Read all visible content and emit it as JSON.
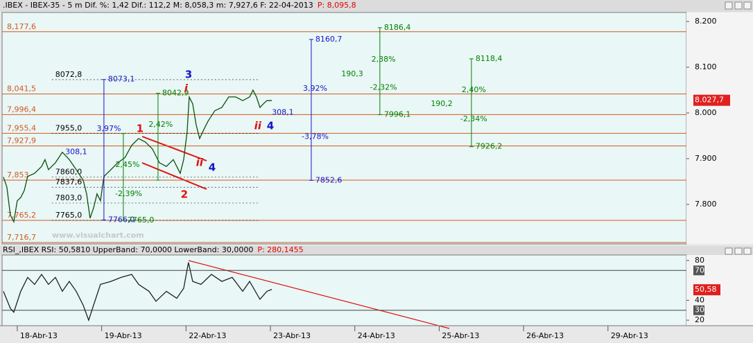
{
  "chart_data": [
    {
      "type": "line",
      "header": [
        {
          "text": ".IBEX - IBEX-35 -  5 m Dif. %: 1,42 Dif.: 112,2 M: 8,058,3 m: 7,927,6 F: 22-04-2013",
          "color": "#000000"
        },
        {
          "text": "P: 8,095,8",
          "color": "#e00000"
        }
      ],
      "watermark": "www.visualchart.com",
      "color": "#0b4f0b",
      "x": [
        -0.164,
        -0.123,
        -0.082,
        -0.041,
        0,
        0.041,
        0.082,
        0.123,
        0.205,
        0.288,
        0.329,
        0.37,
        0.452,
        0.534,
        0.616,
        0.698,
        0.781,
        0.822,
        0.863,
        0.904,
        0.945,
        0.986,
        1.027,
        1.109,
        1.191,
        1.274,
        1.356,
        1.438,
        1.52,
        1.602,
        1.684,
        1.767,
        1.849,
        1.89,
        1.931,
        1.972,
        2.013,
        2.038,
        2.079,
        2.12,
        2.161,
        2.219,
        2.26,
        2.342,
        2.424,
        2.506,
        2.588,
        2.671,
        2.753,
        2.794,
        2.835,
        2.876,
        2.917,
        2.958,
        3.016
      ],
      "values": [
        7860,
        7838,
        7777,
        7762,
        7808,
        7815,
        7830,
        7861,
        7868,
        7883,
        7898,
        7876,
        7891,
        7914,
        7898,
        7876,
        7853,
        7823,
        7770,
        7792,
        7823,
        7808,
        7861,
        7876,
        7891,
        7902,
        7929,
        7944,
        7936,
        7921,
        7891,
        7883,
        7898,
        7883,
        7868,
        7898,
        7959,
        8035,
        8020,
        7974,
        7944,
        7967,
        7982,
        8005,
        8012,
        8035,
        8035,
        8027,
        8035,
        8050,
        8035,
        8012,
        8020,
        8027,
        8027
      ],
      "xlim": [
        -0.18,
        7.93
      ],
      "ylim": [
        7713.6,
        8219.7
      ],
      "yticks": [
        {
          "value": 7800,
          "label": "7.800"
        },
        {
          "value": 7900,
          "label": "7.900"
        },
        {
          "value": 8000,
          "label": "8.000"
        },
        {
          "value": 8100,
          "label": "8.100"
        },
        {
          "value": 8200,
          "label": "8.200"
        }
      ],
      "level_color": "#d2581e",
      "levels": [
        {
          "value": 8177.6,
          "label": "8,177,6"
        },
        {
          "value": 8041.5,
          "label": "8,041,5"
        },
        {
          "value": 7996.4,
          "label": "7,996,4"
        },
        {
          "value": 7955.4,
          "label": "7,955,4"
        },
        {
          "value": 7927.9,
          "label": "7,927,9"
        },
        {
          "value": 7853,
          "label": "7,853"
        },
        {
          "value": 7765.2,
          "label": "7,765,2"
        },
        {
          "value": 7716.7,
          "label": "7,716,7"
        }
      ],
      "fib": {
        "x": [
          0.41,
          2.85
        ],
        "color": "#000000",
        "levels": [
          {
            "value": 8072.8,
            "label": "8072,8"
          },
          {
            "value": 7955,
            "label": "7955,0"
          },
          {
            "value": 7860,
            "label": "7860,0"
          },
          {
            "value": 7837.6,
            "label": "7837,6"
          },
          {
            "value": 7803,
            "label": "7803,0"
          },
          {
            "value": 7765,
            "label": "7765,0"
          }
        ]
      },
      "measures": [
        {
          "x": 1.027,
          "top": 8073.1,
          "top_label": "8073,1",
          "bottom": 7766.0,
          "bottom_label": "7766,0",
          "color": "#1414c8"
        },
        {
          "x": 1.257,
          "top": 7955,
          "bottom": 7765,
          "bottom_label": "7765,0",
          "color": "#008000"
        },
        {
          "x": 1.668,
          "top": 8042.9,
          "top_label": "8042,9",
          "bottom": 7853,
          "color": "#008000"
        },
        {
          "x": 3.484,
          "top": 8160.7,
          "top_label": "8160,7",
          "bottom": 7852.6,
          "bottom_label": "7852,6",
          "color": "#1414c8"
        },
        {
          "x": 4.297,
          "top": 8186.4,
          "top_label": "8186,4",
          "bottom": 7996.1,
          "bottom_label": "7996,1",
          "color": "#008000"
        },
        {
          "x": 5.382,
          "top": 8118.4,
          "top_label": "8118,4",
          "bottom": 7926.2,
          "bottom_label": "7926,2",
          "color": "#008000"
        }
      ],
      "annotations": [
        {
          "text": "1",
          "x": 1.454,
          "y": 7965,
          "color": "#e01010",
          "kind": "wave"
        },
        {
          "text": "2",
          "x": 1.98,
          "y": 7821,
          "color": "#e01010",
          "kind": "wave"
        },
        {
          "text": "3",
          "x": 2.03,
          "y": 8083,
          "color": "#1414c8",
          "kind": "wave"
        },
        {
          "text": "4",
          "x": 2.309,
          "y": 7880,
          "color": "#1414c8",
          "kind": "wave"
        },
        {
          "text": "4",
          "x": 3.0,
          "y": 7971,
          "color": "#1414c8",
          "kind": "wave"
        },
        {
          "text": "i",
          "x": 2.0,
          "y": 8053,
          "color": "#e01010",
          "kind": "wave"
        },
        {
          "text": "ii",
          "x": 2.16,
          "y": 7891,
          "color": "#e01010",
          "kind": "wave"
        },
        {
          "text": "ii",
          "x": 2.85,
          "y": 7971,
          "color": "#e01010",
          "kind": "wave"
        },
        {
          "text": "3,92%",
          "x": 3.53,
          "y": 8053,
          "color": "#1414c8",
          "kind": "note"
        },
        {
          "text": "308,1",
          "x": 3.147,
          "y": 8001,
          "color": "#1414c8",
          "kind": "note"
        },
        {
          "text": "-3,78%",
          "x": 3.53,
          "y": 7948,
          "color": "#1414c8",
          "kind": "note"
        },
        {
          "text": "2,38%",
          "x": 4.34,
          "y": 8117,
          "color": "#008000",
          "kind": "note"
        },
        {
          "text": "190,3",
          "x": 3.97,
          "y": 8085,
          "color": "#008000",
          "kind": "note"
        },
        {
          "text": "-2,32%",
          "x": 4.34,
          "y": 8055,
          "color": "#008000",
          "kind": "note"
        },
        {
          "text": "190,2",
          "x": 5.03,
          "y": 8020,
          "color": "#008000",
          "kind": "note"
        },
        {
          "text": "2,40%",
          "x": 5.41,
          "y": 8050,
          "color": "#008000",
          "kind": "note"
        },
        {
          "text": "-2,34%",
          "x": 5.41,
          "y": 7986,
          "color": "#008000",
          "kind": "note"
        },
        {
          "text": "3,97%",
          "x": 1.085,
          "y": 7965,
          "color": "#1414c8",
          "kind": "note"
        },
        {
          "text": "308,1",
          "x": 0.698,
          "y": 7914,
          "color": "#1414c8",
          "kind": "note"
        },
        {
          "text": "2,42%",
          "x": 1.7,
          "y": 7974,
          "color": "#008000",
          "kind": "note"
        },
        {
          "text": "2,45%",
          "x": 1.307,
          "y": 7886,
          "color": "#008000",
          "kind": "note"
        },
        {
          "text": "-2,39%",
          "x": 1.32,
          "y": 7823,
          "color": "#008000",
          "kind": "note"
        }
      ],
      "last": {
        "value": 8027.7,
        "label": "8.027,7"
      }
    },
    {
      "type": "line",
      "header": [
        {
          "text": "RSI_,IBEX RSI: 50,5810 UpperBand: 70,0000 LowerBand: 30,0000",
          "color": "#000000"
        },
        {
          "text": "P: 280,1455",
          "color": "#e00000"
        }
      ],
      "color": "#202020",
      "x": [
        -0.164,
        -0.082,
        -0.041,
        0.041,
        0.123,
        0.205,
        0.288,
        0.37,
        0.452,
        0.534,
        0.616,
        0.698,
        0.781,
        0.846,
        0.904,
        0.986,
        1.109,
        1.232,
        1.356,
        1.438,
        1.561,
        1.643,
        1.767,
        1.89,
        1.972,
        2.029,
        2.079,
        2.177,
        2.301,
        2.424,
        2.547,
        2.671,
        2.753,
        2.876,
        2.958,
        3.016
      ],
      "values": [
        49,
        32,
        28,
        49,
        63,
        56,
        66,
        56,
        63,
        49,
        59,
        49,
        35,
        20,
        35,
        56,
        59,
        63,
        66,
        56,
        49,
        39,
        49,
        42,
        52,
        78,
        59,
        56,
        66,
        59,
        63,
        49,
        59,
        41,
        49,
        51
      ],
      "xlim": [
        -0.18,
        7.93
      ],
      "ylim": [
        14.5,
        85.5
      ],
      "yticks": [
        20,
        40,
        80
      ],
      "bands": [
        70,
        30
      ],
      "xticks": [
        {
          "value": 0,
          "label": "18-Abr-13"
        },
        {
          "value": 1,
          "label": "19-Abr-13"
        },
        {
          "value": 2,
          "label": "22-Abr-13"
        },
        {
          "value": 3,
          "label": "23-Abr-13"
        },
        {
          "value": 4,
          "label": "24-Abr-13"
        },
        {
          "value": 5,
          "label": "25-Abr-13"
        },
        {
          "value": 6,
          "label": "26-Abr-13"
        },
        {
          "value": 7,
          "label": "29-Abr-13"
        }
      ],
      "last": {
        "value": 50.58,
        "label": "50,58"
      }
    }
  ]
}
